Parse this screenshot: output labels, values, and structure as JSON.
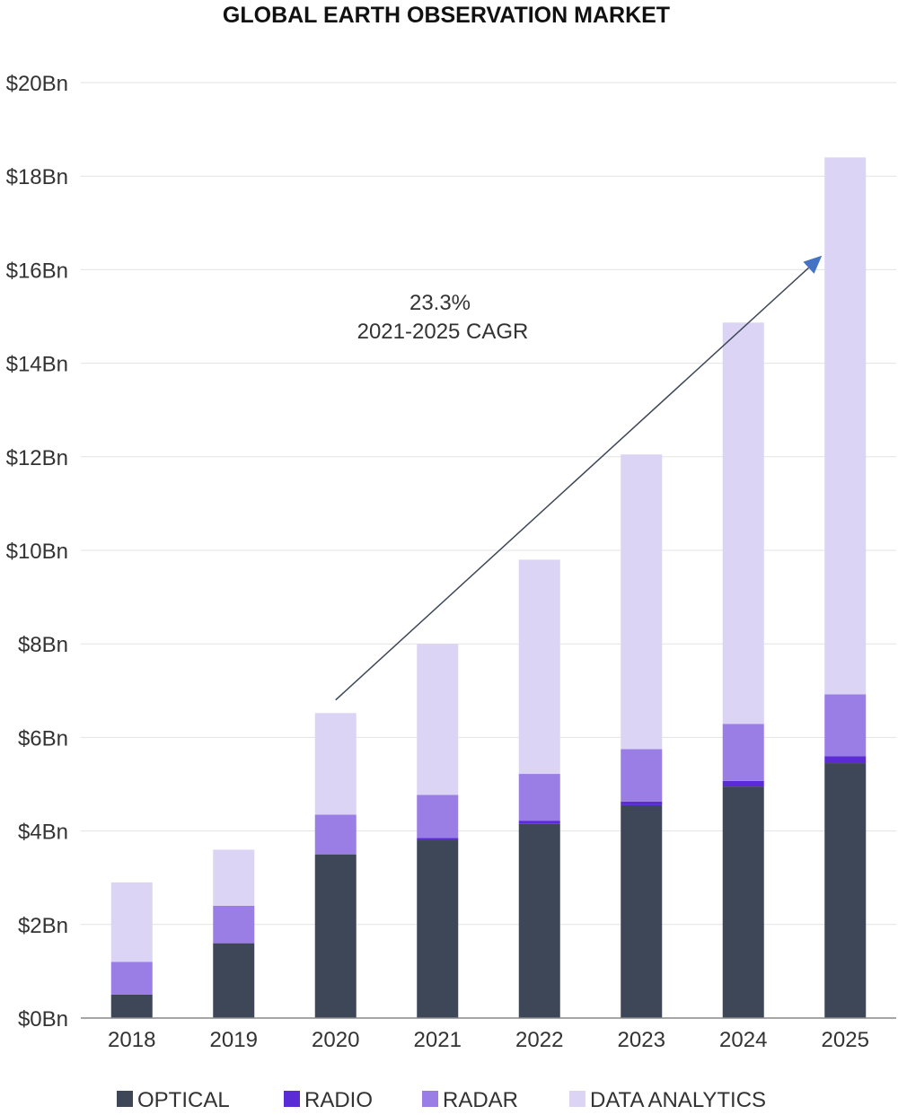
{
  "chart_data": {
    "type": "bar",
    "stacked": true,
    "title": "GLOBAL EARTH OBSERVATION MARKET",
    "xlabel": "",
    "ylabel": "",
    "categories": [
      "2018",
      "2019",
      "2020",
      "2021",
      "2022",
      "2023",
      "2024",
      "2025"
    ],
    "ylim": [
      0,
      20
    ],
    "yticks": [
      0,
      2,
      4,
      6,
      8,
      10,
      12,
      14,
      16,
      18,
      20
    ],
    "ytick_labels": [
      "$0Bn",
      "$2Bn",
      "$4Bn",
      "$6Bn",
      "$8Bn",
      "$10Bn",
      "$12Bn",
      "$14Bn",
      "$16Bn",
      "$18Bn",
      "$20Bn"
    ],
    "grid": true,
    "legend_position": "bottom",
    "series": [
      {
        "name": "OPTICAL",
        "color": "#3d4758",
        "values": [
          0.5,
          1.6,
          3.5,
          3.8,
          4.15,
          4.55,
          4.95,
          5.45
        ]
      },
      {
        "name": "RADIO",
        "color": "#5b2bd6",
        "values": [
          0,
          0,
          0,
          0.05,
          0.07,
          0.08,
          0.12,
          0.15
        ]
      },
      {
        "name": "RADAR",
        "color": "#9a7ee6",
        "values": [
          0.7,
          0.8,
          0.85,
          0.92,
          1.0,
          1.12,
          1.22,
          1.32
        ]
      },
      {
        "name": "DATA ANALYTICS",
        "color": "#dcd4f5",
        "values": [
          1.7,
          1.2,
          2.17,
          3.23,
          4.58,
          6.3,
          8.58,
          11.48
        ]
      }
    ],
    "annotation": {
      "lines": [
        "23.3%",
        "2021-2025 CAGR"
      ],
      "arrow_from": {
        "category": "2020",
        "y": 6.8
      },
      "arrow_to": {
        "category": "2025",
        "y": 16.3
      },
      "arrow_color": "#4472c4"
    }
  }
}
